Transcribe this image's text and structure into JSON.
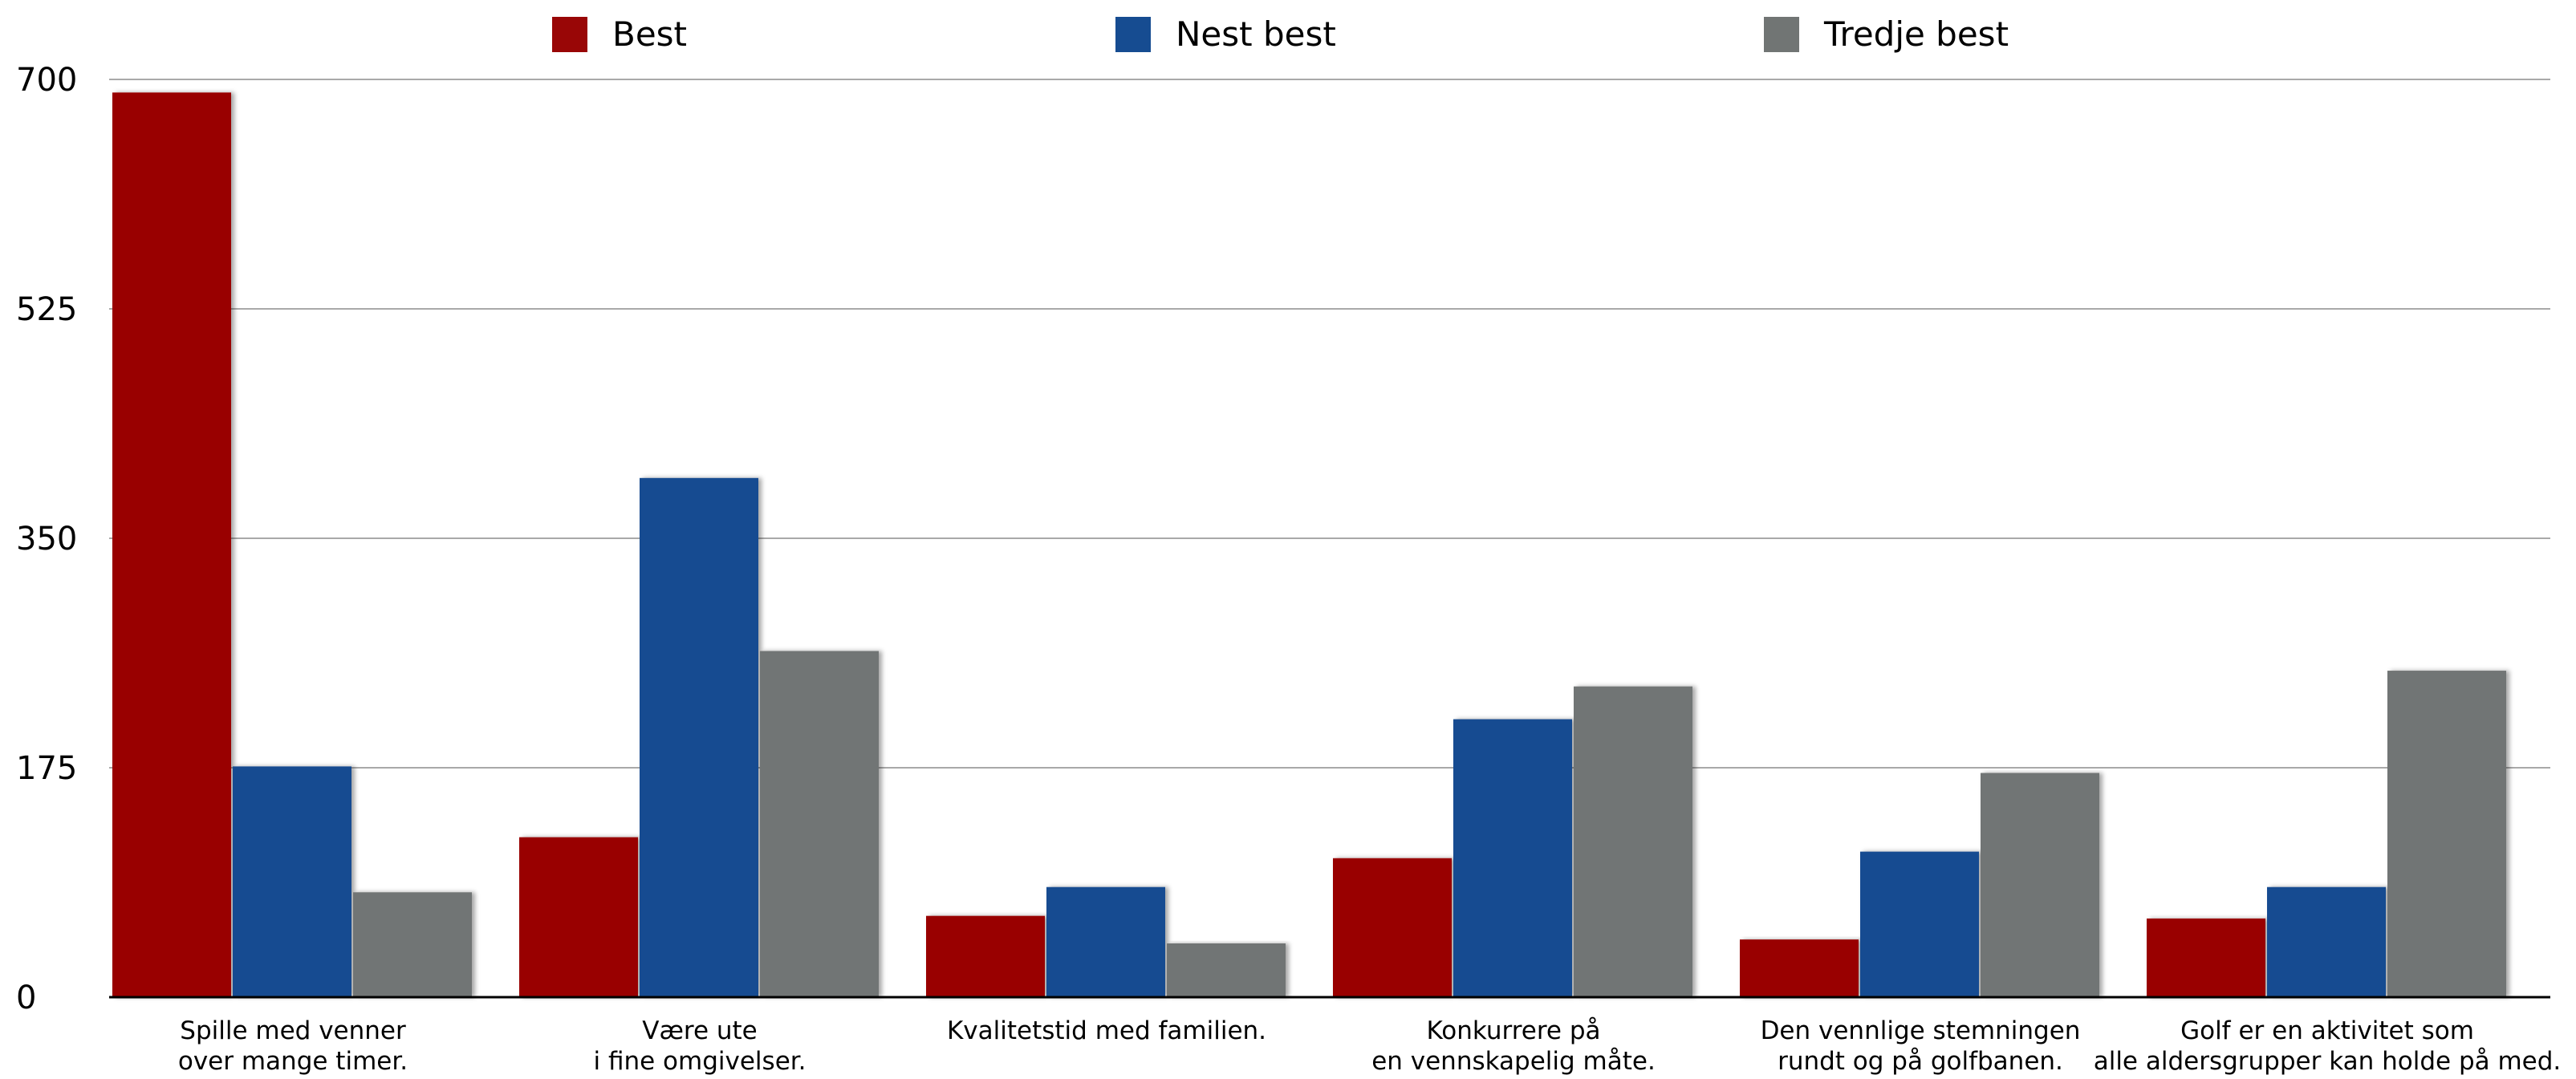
{
  "chart_data": {
    "type": "bar",
    "categories": [
      [
        "Spille med venner",
        "over mange timer."
      ],
      [
        "Være ute",
        "i fine omgivelser."
      ],
      [
        "Kvalitetstid med familien."
      ],
      [
        "Konkurrere på",
        "en vennskapelig måte."
      ],
      [
        "Den vennlige stemningen",
        "rundt og på golfbanen."
      ],
      [
        "Golf er en aktivitet som",
        "alle aldersgrupper kan holde på med."
      ]
    ],
    "series": [
      {
        "name": "Best",
        "color": "#990606",
        "values": [
          690,
          122,
          62,
          106,
          44,
          60
        ]
      },
      {
        "name": "Nest best",
        "color": "#164c91",
        "values": [
          176,
          396,
          84,
          212,
          111,
          84
        ]
      },
      {
        "name": "Tredje best",
        "color": "#717574",
        "values": [
          80,
          264,
          41,
          237,
          171,
          249
        ]
      }
    ],
    "yticks": [
      "0",
      "175",
      "350",
      "525",
      "700"
    ],
    "ylim": [
      0,
      700
    ],
    "grid": true,
    "legend_position": "top"
  }
}
